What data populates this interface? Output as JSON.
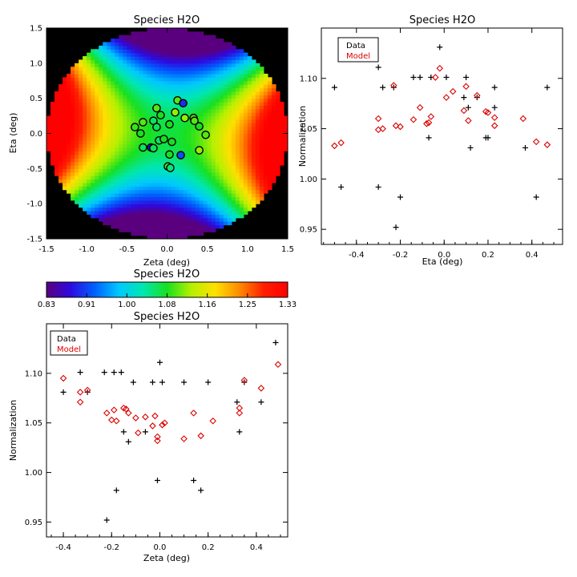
{
  "colors": {
    "data": "#000000",
    "model": "#dd0000",
    "background": "#000000"
  },
  "colormap": [
    "#5a007e",
    "#2d0ae0",
    "#0060ff",
    "#00c8ff",
    "#00e7b0",
    "#18e020",
    "#b6f000",
    "#ffe000",
    "#ff8a00",
    "#ff1f00",
    "#ff0000"
  ],
  "chart_data": [
    {
      "id": "map",
      "type": "heatmap",
      "title": "Species H2O",
      "xlabel": "Zeta (deg)",
      "ylabel": "Eta (deg)",
      "xlim": [
        -1.5,
        1.5
      ],
      "ylim": [
        -1.5,
        1.5
      ],
      "xticks": [
        -1.5,
        -1.0,
        -0.5,
        0.0,
        0.5,
        1.0,
        1.5
      ],
      "yticks": [
        -1.5,
        -1.0,
        -0.5,
        0.0,
        0.5,
        1.0,
        1.5
      ],
      "field_radius_deg": 1.5,
      "points": [
        {
          "x": 0.13,
          "y": 0.47,
          "v": 1.1
        },
        {
          "x": 0.2,
          "y": 0.43,
          "v": 0.9
        },
        {
          "x": -0.13,
          "y": 0.36,
          "v": 1.1
        },
        {
          "x": -0.08,
          "y": 0.26,
          "v": 1.08
        },
        {
          "x": 0.1,
          "y": 0.3,
          "v": 1.12
        },
        {
          "x": 0.22,
          "y": 0.22,
          "v": 1.12
        },
        {
          "x": 0.33,
          "y": 0.22,
          "v": 1.1
        },
        {
          "x": 0.34,
          "y": 0.18,
          "v": 1.1
        },
        {
          "x": -0.3,
          "y": 0.16,
          "v": 1.1
        },
        {
          "x": -0.17,
          "y": 0.18,
          "v": 1.06
        },
        {
          "x": -0.4,
          "y": 0.09,
          "v": 1.09
        },
        {
          "x": -0.13,
          "y": 0.09,
          "v": 1.06
        },
        {
          "x": 0.03,
          "y": 0.13,
          "v": 1.08
        },
        {
          "x": 0.4,
          "y": 0.1,
          "v": 1.08
        },
        {
          "x": -0.33,
          "y": 0.0,
          "v": 1.08
        },
        {
          "x": -0.1,
          "y": -0.1,
          "v": 1.06
        },
        {
          "x": -0.04,
          "y": -0.08,
          "v": 1.08
        },
        {
          "x": 0.06,
          "y": -0.12,
          "v": 1.08
        },
        {
          "x": 0.48,
          "y": -0.02,
          "v": 1.1
        },
        {
          "x": -0.3,
          "y": -0.2,
          "v": 1.06
        },
        {
          "x": -0.2,
          "y": -0.2,
          "v": 0.88
        },
        {
          "x": 0.03,
          "y": -0.3,
          "v": 1.08
        },
        {
          "x": 0.17,
          "y": -0.31,
          "v": 0.92
        },
        {
          "x": 0.4,
          "y": -0.24,
          "v": 1.12
        },
        {
          "x": 0.01,
          "y": -0.47,
          "v": 1.1
        },
        {
          "x": 0.04,
          "y": -0.49,
          "v": 1.05
        },
        {
          "x": -0.17,
          "y": -0.21,
          "v": 1.06
        }
      ]
    },
    {
      "id": "eta",
      "type": "scatter",
      "title": "Species H2O",
      "xlabel": "Eta (deg)",
      "ylabel": "Normalization",
      "xlim": [
        -0.56,
        0.54
      ],
      "ylim": [
        0.935,
        1.15
      ],
      "xticks": [
        -0.4,
        -0.2,
        0.0,
        0.2,
        0.4
      ],
      "yticks": [
        0.95,
        1.0,
        1.05,
        1.1
      ],
      "legend": [
        "Data",
        "Model"
      ],
      "series": [
        {
          "name": "Data",
          "marker": "plus",
          "points": [
            [
              -0.5,
              1.091
            ],
            [
              -0.47,
              0.992
            ],
            [
              -0.3,
              1.111
            ],
            [
              -0.3,
              0.992
            ],
            [
              -0.28,
              1.091
            ],
            [
              -0.23,
              1.091
            ],
            [
              -0.22,
              0.952
            ],
            [
              -0.2,
              0.982
            ],
            [
              -0.14,
              1.101
            ],
            [
              -0.11,
              1.101
            ],
            [
              -0.07,
              1.041
            ],
            [
              -0.06,
              1.101
            ],
            [
              -0.02,
              1.131
            ],
            [
              0.01,
              1.101
            ],
            [
              0.09,
              1.081
            ],
            [
              0.1,
              1.101
            ],
            [
              0.11,
              1.071
            ],
            [
              0.12,
              1.031
            ],
            [
              0.15,
              1.081
            ],
            [
              0.19,
              1.041
            ],
            [
              0.2,
              1.041
            ],
            [
              0.23,
              1.091
            ],
            [
              0.23,
              1.071
            ],
            [
              0.37,
              1.031
            ],
            [
              0.42,
              0.982
            ],
            [
              0.47,
              1.091
            ]
          ]
        },
        {
          "name": "Model",
          "marker": "diamond",
          "points": [
            [
              -0.5,
              1.033
            ],
            [
              -0.47,
              1.036
            ],
            [
              -0.3,
              1.06
            ],
            [
              -0.3,
              1.049
            ],
            [
              -0.28,
              1.05
            ],
            [
              -0.23,
              1.093
            ],
            [
              -0.22,
              1.053
            ],
            [
              -0.2,
              1.052
            ],
            [
              -0.14,
              1.059
            ],
            [
              -0.11,
              1.071
            ],
            [
              -0.08,
              1.055
            ],
            [
              -0.07,
              1.056
            ],
            [
              -0.06,
              1.062
            ],
            [
              -0.04,
              1.101
            ],
            [
              -0.02,
              1.11
            ],
            [
              0.01,
              1.081
            ],
            [
              0.04,
              1.087
            ],
            [
              0.09,
              1.068
            ],
            [
              0.1,
              1.092
            ],
            [
              0.11,
              1.058
            ],
            [
              0.15,
              1.083
            ],
            [
              0.19,
              1.067
            ],
            [
              0.2,
              1.066
            ],
            [
              0.23,
              1.061
            ],
            [
              0.23,
              1.053
            ],
            [
              0.36,
              1.06
            ],
            [
              0.42,
              1.037
            ],
            [
              0.47,
              1.034
            ]
          ]
        }
      ]
    },
    {
      "id": "zeta",
      "type": "scatter",
      "title": "Species H2O",
      "xlabel": "Zeta (deg)",
      "ylabel": "Normalization",
      "xlim": [
        -0.47,
        0.53
      ],
      "ylim": [
        0.935,
        1.15
      ],
      "xticks": [
        -0.4,
        -0.2,
        0.0,
        0.2,
        0.4
      ],
      "yticks": [
        0.95,
        1.0,
        1.05,
        1.1
      ],
      "legend": [
        "Data",
        "Model"
      ],
      "series": [
        {
          "name": "Data",
          "marker": "plus",
          "points": [
            [
              -0.4,
              1.081
            ],
            [
              -0.33,
              1.101
            ],
            [
              -0.3,
              1.081
            ],
            [
              -0.23,
              1.101
            ],
            [
              -0.22,
              0.952
            ],
            [
              -0.19,
              1.101
            ],
            [
              -0.18,
              0.982
            ],
            [
              -0.16,
              1.101
            ],
            [
              -0.15,
              1.041
            ],
            [
              -0.13,
              1.031
            ],
            [
              -0.11,
              1.091
            ],
            [
              -0.06,
              1.041
            ],
            [
              -0.03,
              1.091
            ],
            [
              -0.01,
              0.992
            ],
            [
              0.0,
              1.111
            ],
            [
              0.01,
              1.091
            ],
            [
              0.1,
              1.091
            ],
            [
              0.14,
              0.992
            ],
            [
              0.17,
              0.982
            ],
            [
              0.2,
              1.091
            ],
            [
              0.32,
              1.071
            ],
            [
              0.33,
              1.041
            ],
            [
              0.35,
              1.091
            ],
            [
              0.42,
              1.071
            ],
            [
              0.48,
              1.131
            ]
          ]
        },
        {
          "name": "Model",
          "marker": "diamond",
          "points": [
            [
              -0.4,
              1.095
            ],
            [
              -0.33,
              1.081
            ],
            [
              -0.33,
              1.071
            ],
            [
              -0.3,
              1.083
            ],
            [
              -0.22,
              1.06
            ],
            [
              -0.2,
              1.053
            ],
            [
              -0.19,
              1.063
            ],
            [
              -0.18,
              1.052
            ],
            [
              -0.15,
              1.065
            ],
            [
              -0.14,
              1.064
            ],
            [
              -0.13,
              1.06
            ],
            [
              -0.1,
              1.055
            ],
            [
              -0.09,
              1.04
            ],
            [
              -0.06,
              1.056
            ],
            [
              -0.03,
              1.047
            ],
            [
              -0.02,
              1.057
            ],
            [
              -0.01,
              1.032
            ],
            [
              -0.01,
              1.036
            ],
            [
              0.01,
              1.048
            ],
            [
              0.02,
              1.05
            ],
            [
              0.1,
              1.034
            ],
            [
              0.14,
              1.06
            ],
            [
              0.17,
              1.037
            ],
            [
              0.22,
              1.052
            ],
            [
              0.33,
              1.06
            ],
            [
              0.33,
              1.065
            ],
            [
              0.35,
              1.093
            ],
            [
              0.42,
              1.085
            ],
            [
              0.49,
              1.109
            ]
          ]
        }
      ]
    }
  ],
  "colorbar": {
    "title": "Species H2O",
    "min": 0.83,
    "max": 1.33,
    "tick_labels": [
      "0.83",
      "0.91",
      "1.00",
      "1.08",
      "1.16",
      "1.25",
      "1.33"
    ]
  }
}
